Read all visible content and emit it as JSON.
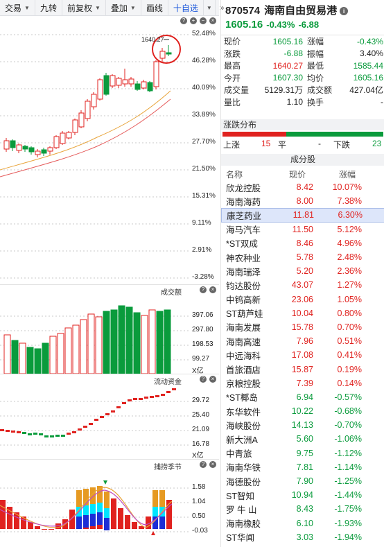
{
  "toolbar": {
    "items": [
      {
        "label": "交易",
        "has_caret": true
      },
      {
        "label": "九转",
        "has_caret": false
      },
      {
        "label": "前复权",
        "has_caret": true
      },
      {
        "label": "叠加",
        "has_caret": true
      },
      {
        "label": "画线",
        "has_caret": false
      }
    ],
    "add_label": "十自选",
    "more_label": "»"
  },
  "kline": {
    "callout": "1640.27",
    "yaxis": [
      "52.48%",
      "46.28%",
      "40.09%",
      "33.89%",
      "27.70%",
      "21.50%",
      "15.31%",
      "9.11%",
      "2.91%",
      "-3.28%"
    ]
  },
  "volume": {
    "title": "成交额",
    "yaxis": [
      "397.06",
      "297.80",
      "198.53",
      "99.27",
      "X亿"
    ]
  },
  "flow": {
    "title": "流动资金",
    "yaxis": [
      "29.72",
      "25.40",
      "21.09",
      "16.78",
      "X亿"
    ]
  },
  "season": {
    "title": "捕捞季节",
    "yaxis": [
      "1.58",
      "1.04",
      "0.50",
      "-0.03"
    ]
  },
  "stock": {
    "code": "870574",
    "name": "海南自由贸易港",
    "info_icon": "i",
    "price": "1605.16",
    "change_pct": "-0.43%",
    "change": "-6.88"
  },
  "quote": [
    {
      "l": "现价",
      "v": "1605.16",
      "vc": "green",
      "l2": "涨幅",
      "v2": "-0.43%",
      "v2c": "green"
    },
    {
      "l": "涨跌",
      "v": "-6.88",
      "vc": "green",
      "l2": "振幅",
      "v2": "3.40%",
      "v2c": "black"
    },
    {
      "l": "最高",
      "v": "1640.27",
      "vc": "red",
      "l2": "最低",
      "v2": "1585.44",
      "v2c": "green"
    },
    {
      "l": "今开",
      "v": "1607.30",
      "vc": "green",
      "l2": "均价",
      "v2": "1605.16",
      "v2c": "green"
    },
    {
      "l": "成交量",
      "v": "5129.31万",
      "vc": "black",
      "l2": "成交额",
      "v2": "427.04亿",
      "v2c": "black"
    },
    {
      "l": "量比",
      "v": "1.10",
      "vc": "black",
      "l2": "换手",
      "v2": "-",
      "v2c": "black"
    }
  ],
  "distribution": {
    "title": "涨跌分布",
    "up_label": "上涨",
    "up": "15",
    "flat_label": "平",
    "flat": "-",
    "down_label": "下跌",
    "down": "23",
    "up_frac": 0.395
  },
  "components": {
    "header": "成分股",
    "cols": [
      "名称",
      "现价",
      "涨幅"
    ],
    "rows": [
      {
        "n": "欣龙控股",
        "p": "8.42",
        "c": "10.07%",
        "d": "red"
      },
      {
        "n": "海南海药",
        "p": "8.00",
        "c": "7.38%",
        "d": "red"
      },
      {
        "n": "康芝药业",
        "p": "11.81",
        "c": "6.30%",
        "d": "red",
        "sel": true
      },
      {
        "n": "海马汽车",
        "p": "11.50",
        "c": "5.12%",
        "d": "red"
      },
      {
        "n": "*ST双成",
        "p": "8.46",
        "c": "4.96%",
        "d": "red"
      },
      {
        "n": "神农种业",
        "p": "5.78",
        "c": "2.48%",
        "d": "red"
      },
      {
        "n": "海南瑞泽",
        "p": "5.20",
        "c": "2.36%",
        "d": "red"
      },
      {
        "n": "钧达股份",
        "p": "43.07",
        "c": "1.27%",
        "d": "red"
      },
      {
        "n": "中钨高新",
        "p": "23.06",
        "c": "1.05%",
        "d": "red"
      },
      {
        "n": "ST葫芦娃",
        "p": "10.04",
        "c": "0.80%",
        "d": "red"
      },
      {
        "n": "海南发展",
        "p": "15.78",
        "c": "0.70%",
        "d": "red"
      },
      {
        "n": "海南高速",
        "p": "7.96",
        "c": "0.51%",
        "d": "red"
      },
      {
        "n": "中远海科",
        "p": "17.08",
        "c": "0.41%",
        "d": "red"
      },
      {
        "n": "首旅酒店",
        "p": "15.87",
        "c": "0.19%",
        "d": "red"
      },
      {
        "n": "京粮控股",
        "p": "7.39",
        "c": "0.14%",
        "d": "red"
      },
      {
        "n": "*ST椰岛",
        "p": "6.94",
        "c": "-0.57%",
        "d": "green"
      },
      {
        "n": "东华软件",
        "p": "10.22",
        "c": "-0.68%",
        "d": "green"
      },
      {
        "n": "海峡股份",
        "p": "14.13",
        "c": "-0.70%",
        "d": "green"
      },
      {
        "n": "新大洲A",
        "p": "5.60",
        "c": "-1.06%",
        "d": "green"
      },
      {
        "n": "中青旅",
        "p": "9.75",
        "c": "-1.12%",
        "d": "green"
      },
      {
        "n": "海南华铁",
        "p": "7.81",
        "c": "-1.14%",
        "d": "green"
      },
      {
        "n": "海德股份",
        "p": "7.90",
        "c": "-1.25%",
        "d": "green"
      },
      {
        "n": "ST智知",
        "p": "10.94",
        "c": "-1.44%",
        "d": "green"
      },
      {
        "n": "罗 牛 山",
        "p": "8.43",
        "c": "-1.75%",
        "d": "green"
      },
      {
        "n": "海南橡胶",
        "p": "6.10",
        "c": "-1.93%",
        "d": "green"
      },
      {
        "n": "ST华闻",
        "p": "3.03",
        "c": "-1.94%",
        "d": "green"
      }
    ]
  },
  "colors": {
    "up": "#e0221f",
    "down": "#0a9b3c",
    "ma1": "#e8a43a",
    "ma2": "#e55a5a",
    "highlight": "#dde6fa"
  }
}
